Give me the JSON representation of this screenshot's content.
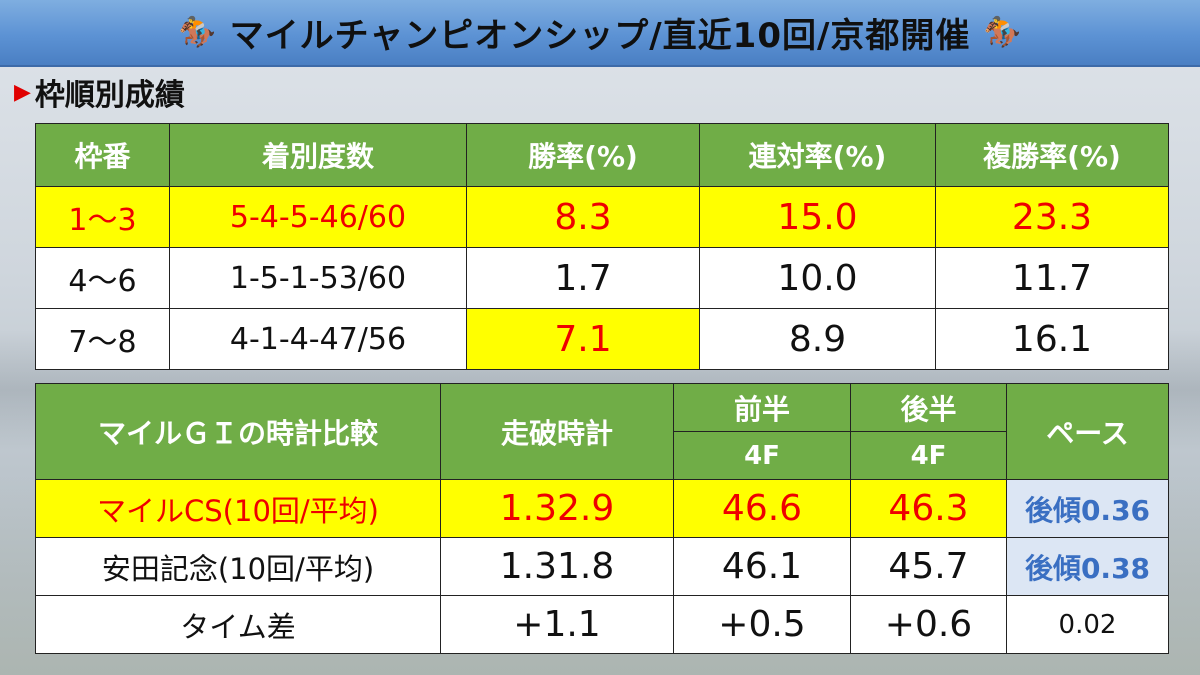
{
  "title": {
    "left_icon": "horse-racing-icon",
    "text": "マイルチャンピオンシップ/直近10回/京都開催",
    "right_icon": "horse-racing-icon"
  },
  "section": {
    "marker": "▶",
    "label": "枠順別成績"
  },
  "colors": {
    "header_green": "#70ad47",
    "highlight_yellow": "#ffff00",
    "red_text": "#ee0000",
    "pace_bg": "#dce6f4",
    "pace_text": "#3a6fc2",
    "title_blue": "#5c92d4"
  },
  "frame_table": {
    "headers": [
      "枠番",
      "着別度数",
      "勝率(%)",
      "連対率(%)",
      "複勝率(%)"
    ],
    "rows": [
      {
        "frame": "1～3",
        "record": "5-4-5-46/60",
        "win": "8.3",
        "quinella": "15.0",
        "place": "23.3"
      },
      {
        "frame": "4～6",
        "record": "1-5-1-53/60",
        "win": "1.7",
        "quinella": "10.0",
        "place": "11.7"
      },
      {
        "frame": "7～8",
        "record": "4-1-4-47/56",
        "win": "7.1",
        "quinella": "8.9",
        "place": "16.1"
      }
    ]
  },
  "time_table": {
    "headers": {
      "compare": "マイルＧＩの時計比較",
      "time": "走破時計",
      "first_half": "前半",
      "first_half_sub": "4F",
      "second_half": "後半",
      "second_half_sub": "4F",
      "pace": "ペース"
    },
    "rows": [
      {
        "label": "マイルCS(10回/平均)",
        "time": "1.32.9",
        "first": "46.6",
        "second": "46.3",
        "pace": "後傾0.36"
      },
      {
        "label": "安田記念(10回/平均)",
        "time": "1.31.8",
        "first": "46.1",
        "second": "45.7",
        "pace": "後傾0.38"
      },
      {
        "label": "タイム差",
        "time": "+1.1",
        "first": "+0.5",
        "second": "+0.6",
        "pace": "0.02"
      }
    ]
  }
}
